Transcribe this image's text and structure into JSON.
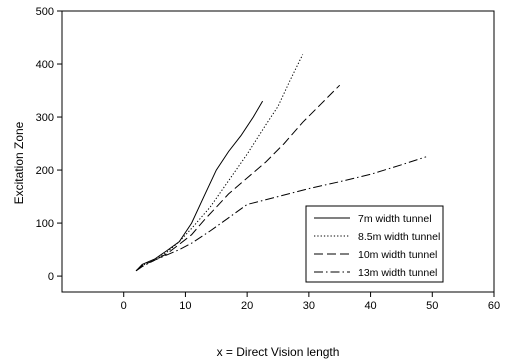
{
  "chart_data": {
    "type": "line",
    "title": "",
    "xlabel": "x = Direct Vision length",
    "ylabel": "Excitation Zone",
    "xlim": [
      -10,
      60
    ],
    "ylim": [
      -30,
      500
    ],
    "xticks": [
      0,
      10,
      20,
      30,
      40,
      50,
      60
    ],
    "yticks": [
      0,
      100,
      200,
      300,
      400,
      500
    ],
    "grid": false,
    "legend_position": "lower-right",
    "series": [
      {
        "name": "7m  width tunnel",
        "dash": "solid",
        "x": [
          2,
          3,
          5,
          7,
          9,
          11,
          13,
          15,
          17,
          19,
          21,
          22.5
        ],
        "y": [
          10,
          22,
          32,
          48,
          65,
          100,
          150,
          200,
          235,
          265,
          300,
          330
        ]
      },
      {
        "name": "8.5m width tunnel",
        "dash": "dotted",
        "x": [
          2,
          3,
          5,
          7,
          9,
          11,
          14,
          17,
          20,
          23,
          25,
          27,
          29
        ],
        "y": [
          10,
          20,
          30,
          45,
          65,
          90,
          130,
          180,
          230,
          285,
          320,
          370,
          418
        ]
      },
      {
        "name": "10m  width tunnel",
        "dash": "dashed",
        "x": [
          2,
          3,
          5,
          7,
          9,
          11,
          13,
          15,
          17,
          20,
          23,
          26,
          29,
          32,
          35
        ],
        "y": [
          10,
          20,
          30,
          42,
          60,
          78,
          105,
          130,
          155,
          185,
          215,
          250,
          290,
          325,
          360
        ]
      },
      {
        "name": "13m  width tunnel",
        "dash": "dash-dot",
        "x": [
          2,
          3,
          5,
          7,
          9,
          11,
          14,
          17,
          20,
          25,
          30,
          35,
          40,
          45,
          49
        ],
        "y": [
          10,
          18,
          30,
          40,
          50,
          62,
          85,
          110,
          135,
          150,
          165,
          178,
          192,
          210,
          225
        ]
      }
    ]
  }
}
